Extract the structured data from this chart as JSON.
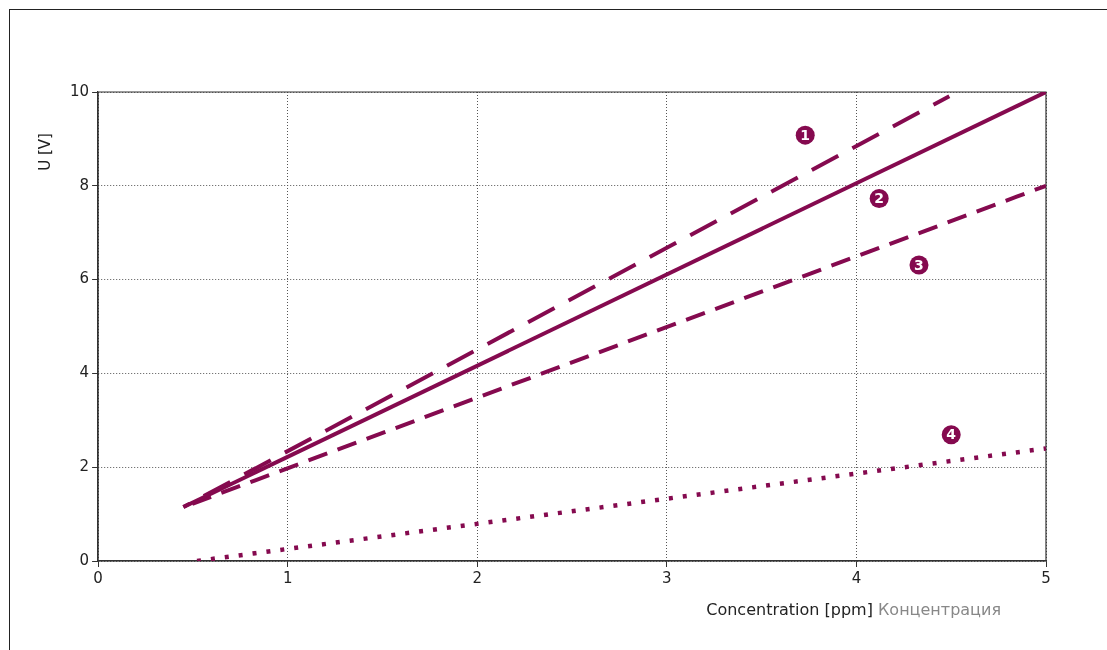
{
  "chart_data": {
    "type": "line",
    "xlabel": "Concentration [ppm]",
    "ylabel": "U [V]",
    "xlim": [
      0,
      5
    ],
    "xticks": [
      0,
      1,
      2,
      3,
      4,
      5
    ],
    "ylim": [
      0,
      10
    ],
    "yticks": [
      0,
      2,
      4,
      6,
      8,
      10
    ],
    "grid": true,
    "marker": "none",
    "series": [
      {
        "color": "#850a4f",
        "line_style": "dashed",
        "x": [
          0.45,
          4.49
        ],
        "values": [
          1.15,
          9.91
        ]
      },
      {
        "color": "#850a4f",
        "line_style": "solid",
        "x": [
          0.45,
          5
        ],
        "values": [
          1.15,
          10
        ]
      },
      {
        "color": "#850a4f",
        "line_style": "dashed",
        "x": [
          0.45,
          5
        ],
        "values": [
          1.15,
          8
        ]
      },
      {
        "color": "#850a4f",
        "line_style": "dotted",
        "x": [
          0.52,
          5
        ],
        "values": [
          0,
          2.4
        ]
      }
    ],
    "annotations": [
      {
        "text": "1",
        "x": 3.73,
        "y": 9.08
      },
      {
        "text": "2",
        "x": 4.12,
        "y": 7.73
      },
      {
        "text": "3",
        "x": 4.33,
        "y": 6.31
      },
      {
        "text": "4",
        "x": 4.5,
        "y": 2.69
      },
      "Концентрация"
    ]
  }
}
